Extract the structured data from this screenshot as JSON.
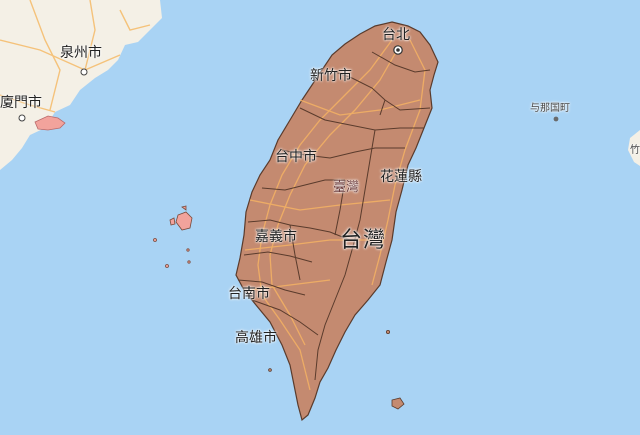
{
  "map": {
    "colors": {
      "sea": "#a9d3f4",
      "land": "#f4f0e6",
      "region": "#c48a70",
      "border": "#5a3b2c",
      "road": "#f5b264"
    },
    "labels": {
      "taipei": "台北",
      "hsinchu": "新竹市",
      "taichung": "台中市",
      "hualien": "花蓮縣",
      "taiwan_small": "臺灣",
      "chiayi": "嘉義市",
      "taiwan_big": "台灣",
      "tainan": "台南市",
      "kaohsiung": "高雄市",
      "quanzhou": "泉州市",
      "xiamen": "廈門市",
      "yonaguni": "与那国町",
      "edge": "竹"
    }
  }
}
